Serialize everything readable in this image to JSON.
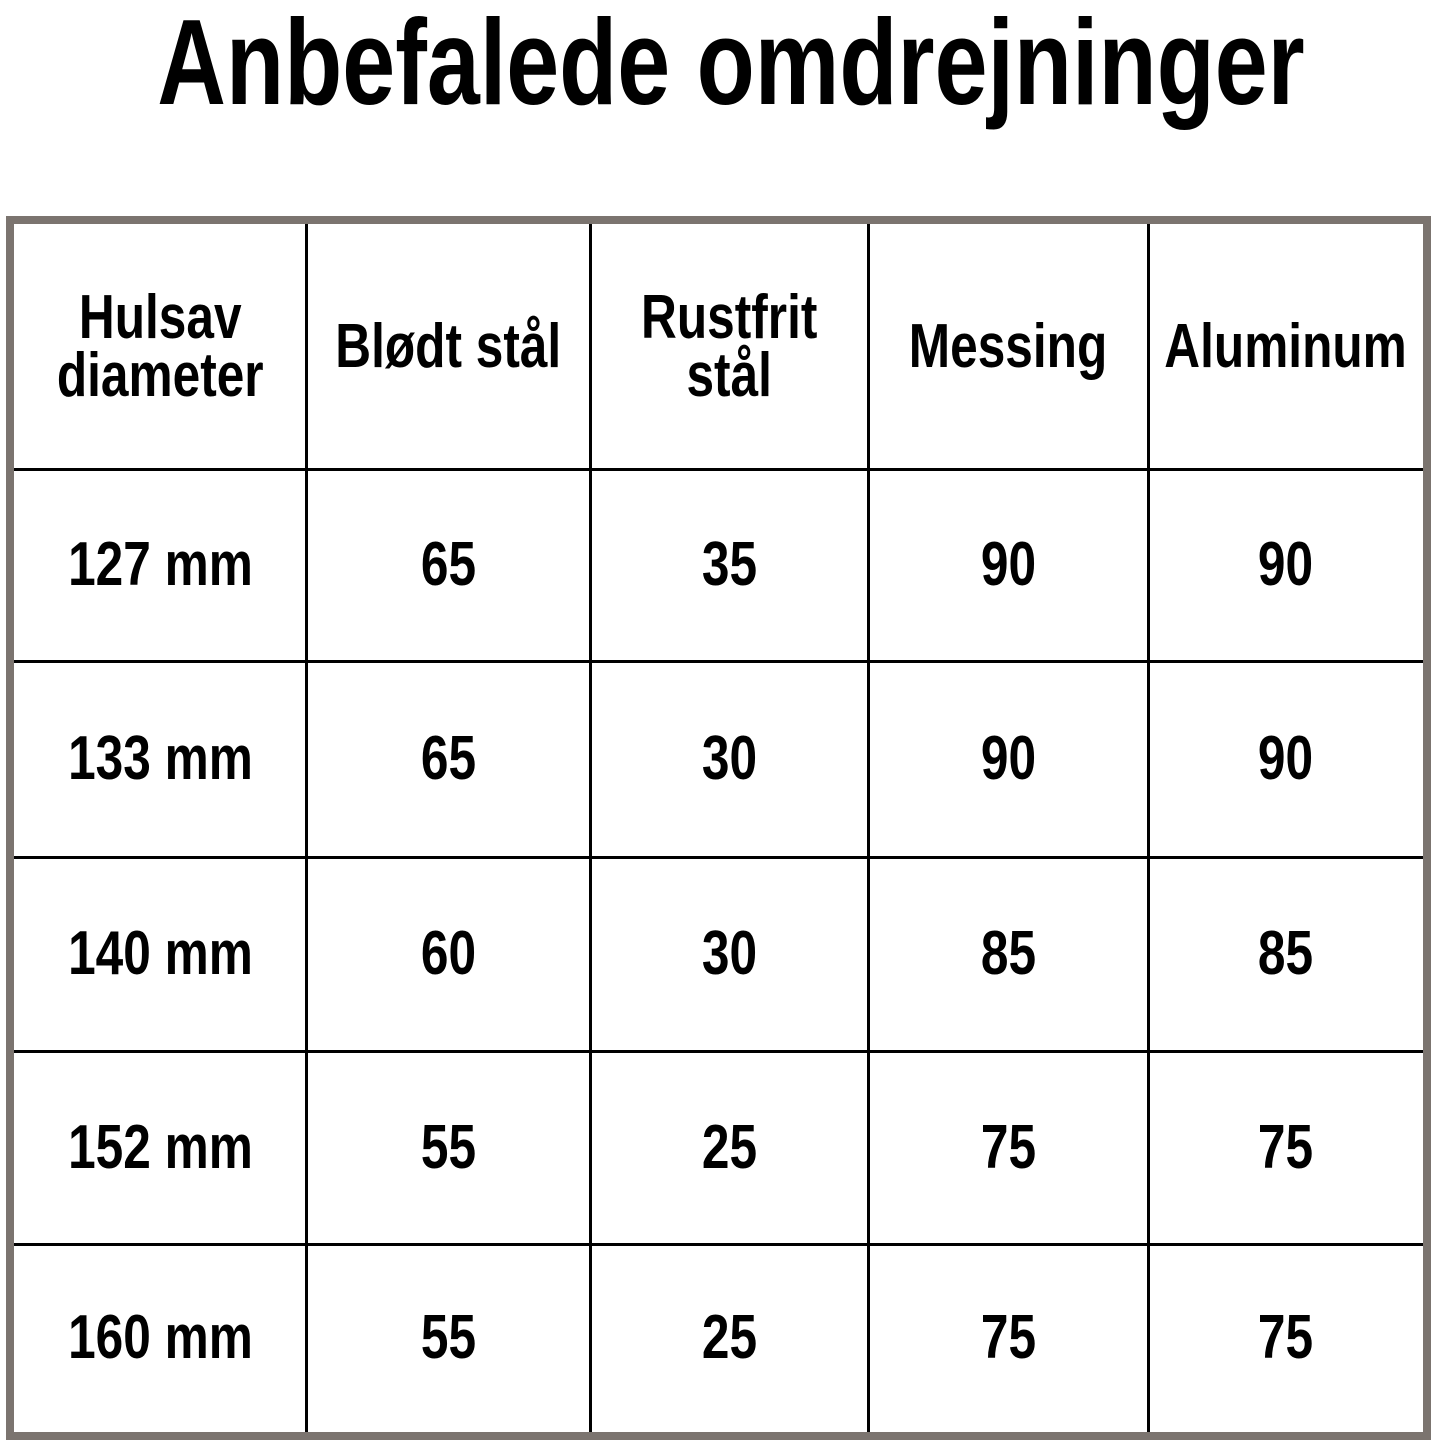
{
  "title": "Anbefalede omdrejninger",
  "table": {
    "headers": [
      "Hulsav\ndiameter",
      "Blødt stål",
      "Rustfrit\nstål",
      "Messing",
      "Aluminum"
    ],
    "rows": [
      [
        "127 mm",
        "65",
        "35",
        "90",
        "90"
      ],
      [
        "133 mm",
        "65",
        "30",
        "90",
        "90"
      ],
      [
        "140 mm",
        "60",
        "30",
        "85",
        "85"
      ],
      [
        "152 mm",
        "55",
        "25",
        "75",
        "75"
      ],
      [
        "160 mm",
        "55",
        "25",
        "75",
        "75"
      ]
    ]
  },
  "colors": {
    "frame": "#7b746f",
    "grid": "#000000"
  }
}
